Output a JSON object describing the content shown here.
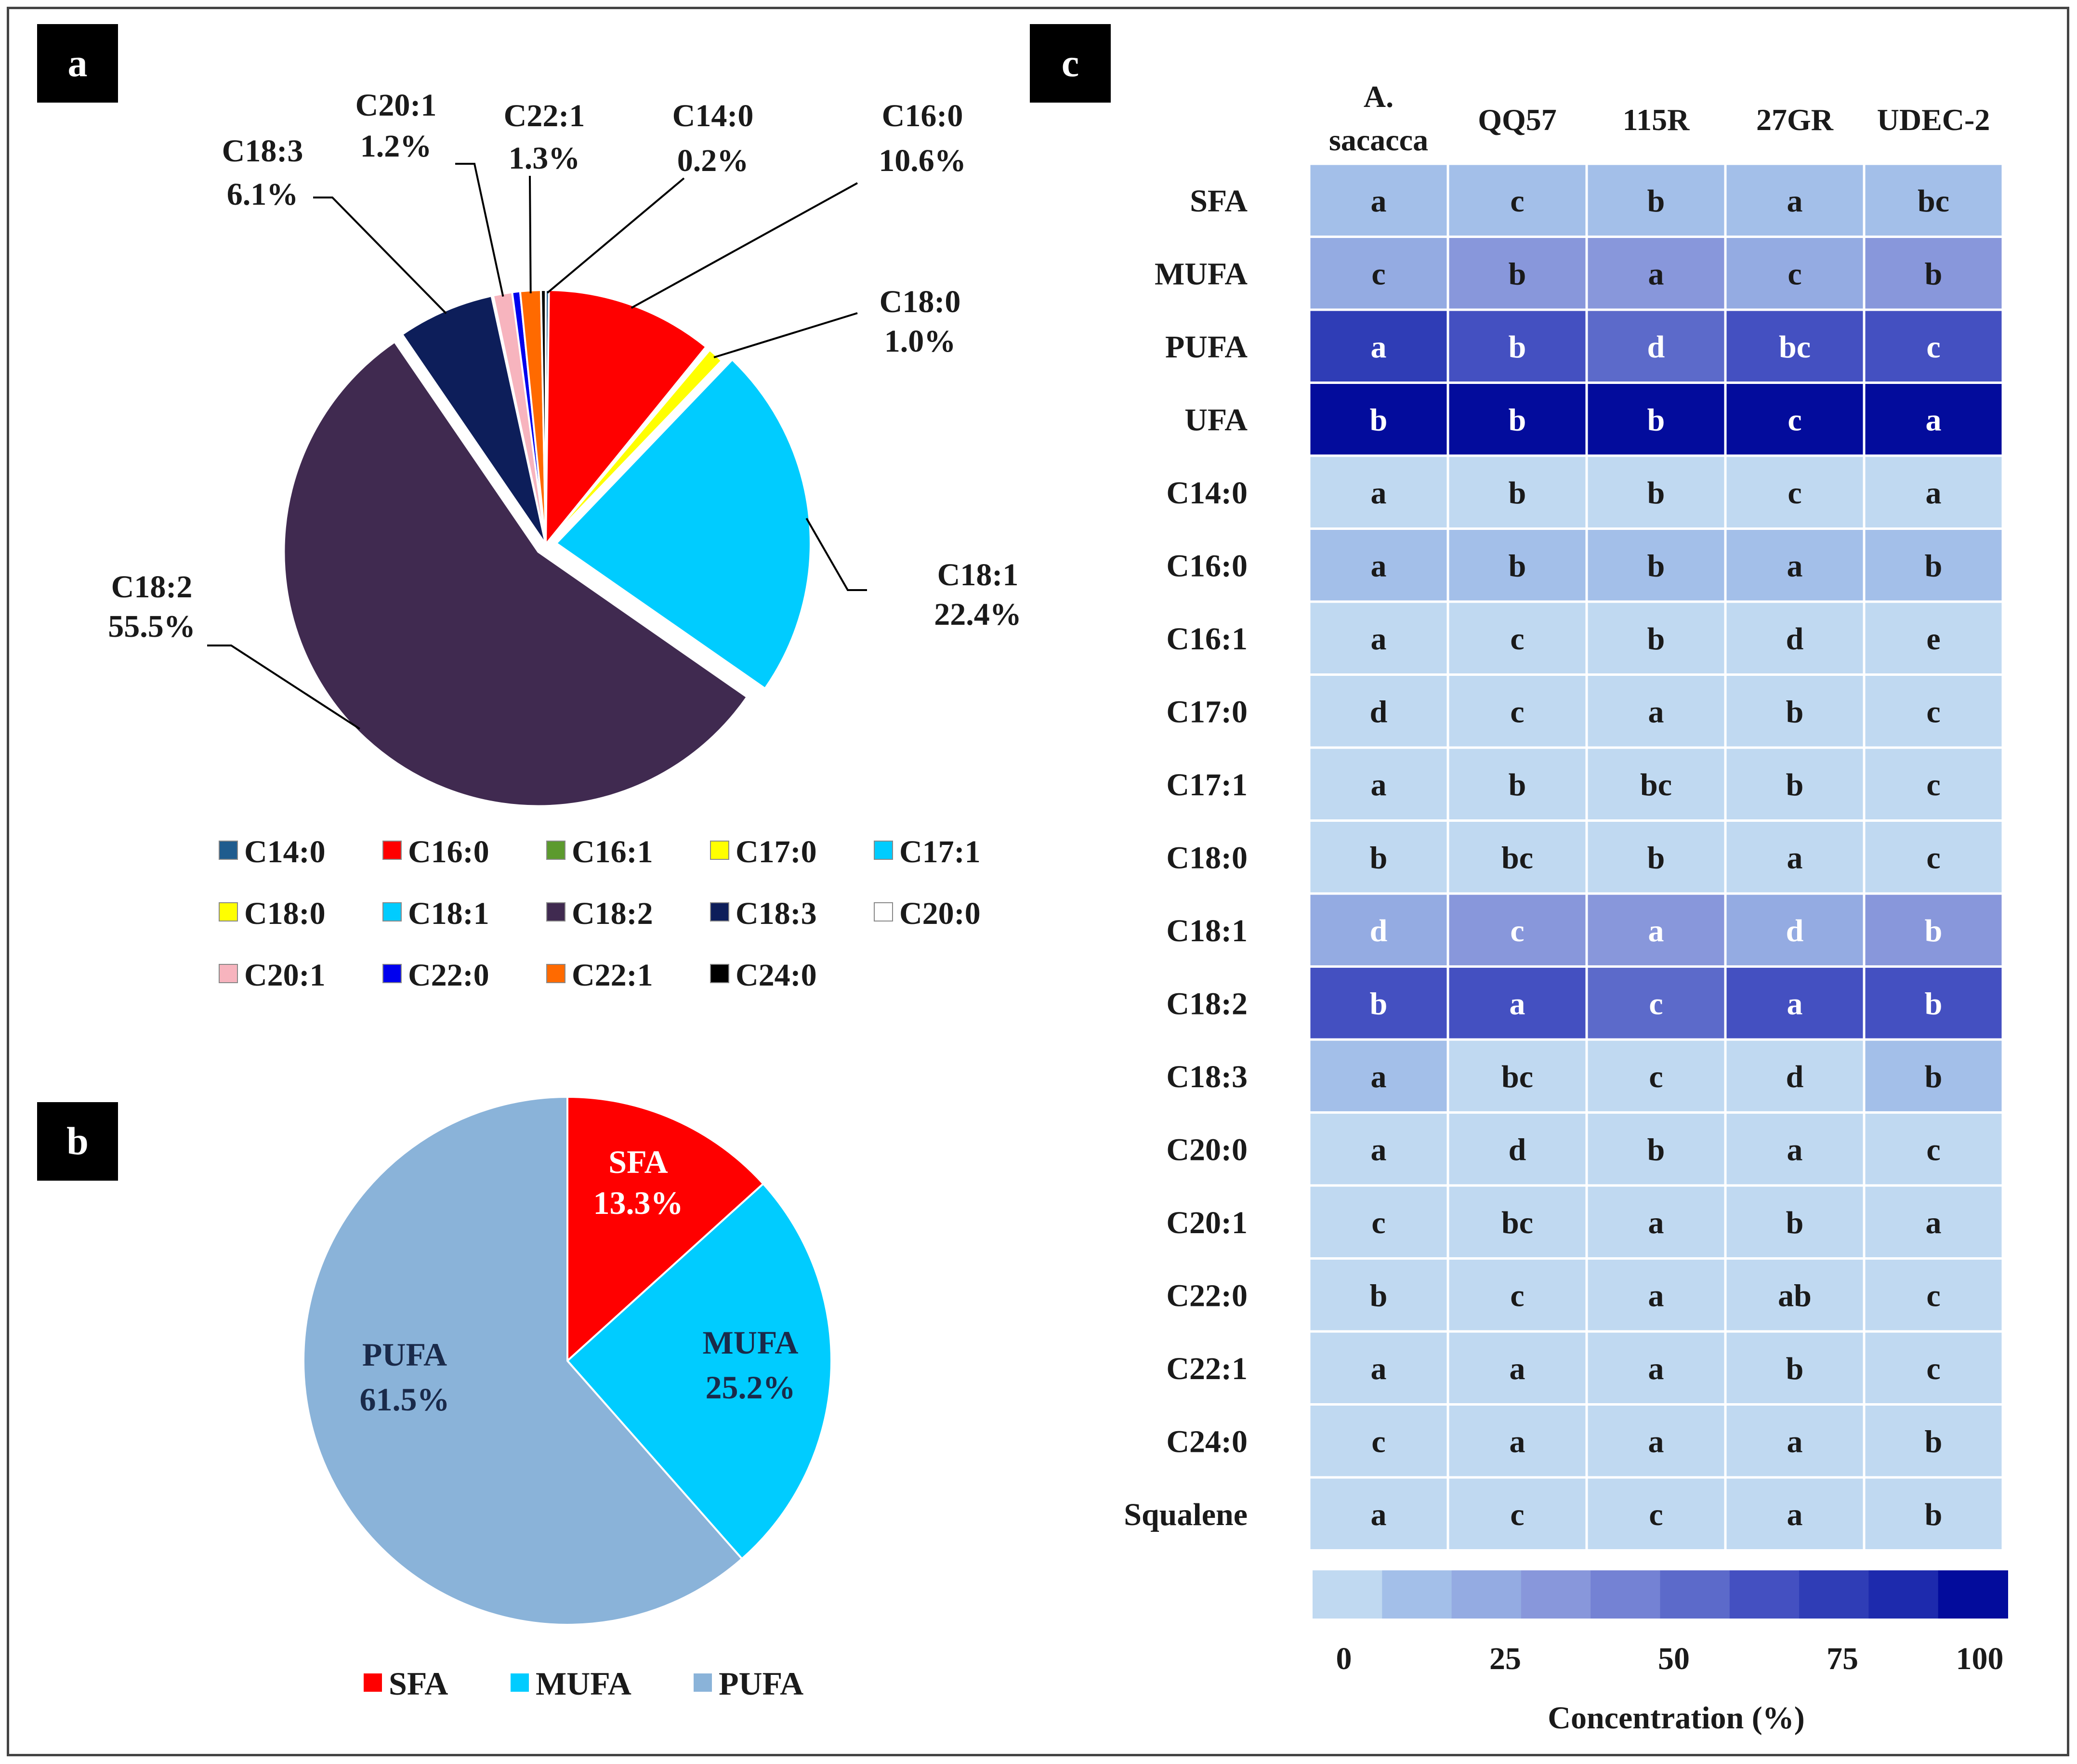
{
  "panels": {
    "a": {
      "letter": "a"
    },
    "b": {
      "letter": "b"
    },
    "c": {
      "letter": "c"
    }
  },
  "chart_data": [
    {
      "type": "pie",
      "panel": "a",
      "slices": [
        {
          "name": "C14:0",
          "value": 0.2,
          "label": "0.2%",
          "color": "#1F5C8E"
        },
        {
          "name": "C16:0",
          "value": 10.6,
          "label": "10.6%",
          "color": "#FF0000"
        },
        {
          "name": "C16:1",
          "value": 0.1,
          "label": "",
          "color": "#5C9A2E"
        },
        {
          "name": "C17:0",
          "value": 0.1,
          "label": "",
          "color": "#FFFF00"
        },
        {
          "name": "C17:1",
          "value": 0.1,
          "label": "",
          "color": "#00CCFF"
        },
        {
          "name": "C18:0",
          "value": 1.0,
          "label": "1.0%",
          "color": "#FFFF00"
        },
        {
          "name": "C18:1",
          "value": 22.4,
          "label": "22.4%",
          "color": "#00CCFF",
          "exploded": true
        },
        {
          "name": "C18:2",
          "value": 55.5,
          "label": "55.5%",
          "color": "#402A50",
          "exploded": true
        },
        {
          "name": "C18:3",
          "value": 6.1,
          "label": "6.1%",
          "color": "#0D1E5A"
        },
        {
          "name": "C20:0",
          "value": 0.1,
          "label": "",
          "color": "#FFFFFF"
        },
        {
          "name": "C20:1",
          "value": 1.2,
          "label": "1.2%",
          "color": "#F7B4BE"
        },
        {
          "name": "C22:0",
          "value": 0.5,
          "label": "",
          "color": "#0000EE"
        },
        {
          "name": "C22:1",
          "value": 1.3,
          "label": "1.3%",
          "color": "#FF6A00"
        },
        {
          "name": "C24:0",
          "value": 0.3,
          "label": "",
          "color": "#000000"
        }
      ],
      "callouts": [
        "C14:0",
        "C16:0",
        "C18:0",
        "C18:1",
        "C18:2",
        "C18:3",
        "C20:1",
        "C22:1"
      ],
      "legend": [
        "C14:0",
        "C16:0",
        "C16:1",
        "C17:0",
        "C17:1",
        "C18:0",
        "C18:1",
        "C18:2",
        "C18:3",
        "C20:0",
        "C20:1",
        "C22:0",
        "C22:1",
        "C24:0"
      ],
      "legend_position": "bottom"
    },
    {
      "type": "pie",
      "panel": "b",
      "slices": [
        {
          "name": "SFA",
          "value": 13.3,
          "label": "13.3%",
          "color": "#FF0000",
          "text_color": "#FFFFFF"
        },
        {
          "name": "MUFA",
          "value": 25.2,
          "label": "25.2%",
          "color": "#00CCFF",
          "text_color": "#1A2A4A"
        },
        {
          "name": "PUFA",
          "value": 61.5,
          "label": "61.5%",
          "color": "#8AB3D9",
          "text_color": "#1A2A4A"
        }
      ],
      "legend": [
        "SFA",
        "MUFA",
        "PUFA"
      ],
      "legend_position": "bottom"
    },
    {
      "type": "heatmap",
      "panel": "c",
      "columns": [
        "A. sacacca",
        "QQ57",
        "115R",
        "27GR",
        "UDEC-2"
      ],
      "rows": [
        "SFA",
        "MUFA",
        "PUFA",
        "UFA",
        "C14:0",
        "C16:0",
        "C16:1",
        "C17:0",
        "C17:1",
        "C18:0",
        "C18:1",
        "C18:2",
        "C18:3",
        "C20:0",
        "C20:1",
        "C22:0",
        "C22:1",
        "C24:0",
        "Squalene"
      ],
      "letters": [
        [
          "a",
          "c",
          "b",
          "a",
          "bc"
        ],
        [
          "c",
          "b",
          "a",
          "c",
          "b"
        ],
        [
          "a",
          "b",
          "d",
          "bc",
          "c"
        ],
        [
          "b",
          "b",
          "b",
          "c",
          "a"
        ],
        [
          "a",
          "b",
          "b",
          "c",
          "a"
        ],
        [
          "a",
          "b",
          "b",
          "a",
          "b"
        ],
        [
          "a",
          "c",
          "b",
          "d",
          "e"
        ],
        [
          "d",
          "c",
          "a",
          "b",
          "c"
        ],
        [
          "a",
          "b",
          "bc",
          "b",
          "c"
        ],
        [
          "b",
          "bc",
          "b",
          "a",
          "c"
        ],
        [
          "d",
          "c",
          "a",
          "d",
          "b"
        ],
        [
          "b",
          "a",
          "c",
          "a",
          "b"
        ],
        [
          "a",
          "bc",
          "c",
          "d",
          "b"
        ],
        [
          "a",
          "d",
          "b",
          "a",
          "c"
        ],
        [
          "c",
          "bc",
          "a",
          "b",
          "a"
        ],
        [
          "b",
          "c",
          "a",
          "ab",
          "c"
        ],
        [
          "a",
          "a",
          "a",
          "b",
          "c"
        ],
        [
          "c",
          "a",
          "a",
          "a",
          "b"
        ],
        [
          "a",
          "c",
          "c",
          "a",
          "b"
        ]
      ],
      "values": [
        [
          14,
          14,
          14,
          14,
          14
        ],
        [
          28,
          33,
          38,
          28,
          33
        ],
        [
          70,
          65,
          58,
          62,
          62
        ],
        [
          96,
          96,
          96,
          93,
          98
        ],
        [
          2,
          2,
          2,
          2,
          2
        ],
        [
          14,
          12,
          12,
          14,
          12
        ],
        [
          2,
          2,
          2,
          2,
          2
        ],
        [
          2,
          2,
          2,
          2,
          2
        ],
        [
          2,
          2,
          2,
          2,
          2
        ],
        [
          2,
          2,
          2,
          2,
          2
        ],
        [
          28,
          30,
          34,
          28,
          34
        ],
        [
          60,
          66,
          56,
          64,
          60
        ],
        [
          14,
          8,
          6,
          4,
          10
        ],
        [
          2,
          2,
          2,
          2,
          2
        ],
        [
          2,
          2,
          2,
          2,
          2
        ],
        [
          2,
          2,
          2,
          2,
          2
        ],
        [
          2,
          2,
          2,
          2,
          2
        ],
        [
          2,
          2,
          2,
          2,
          2
        ],
        [
          7,
          5,
          5,
          7,
          6
        ]
      ],
      "white_letters_row": "C18:1",
      "colorbar": {
        "range": [
          0,
          100
        ],
        "ticks": [
          "0",
          "25",
          "50",
          "75",
          "100"
        ],
        "label": "Concentration (%)",
        "colors": [
          "#C0D9F1",
          "#A3BFE9",
          "#94ABE2",
          "#8897DB",
          "#7482D4",
          "#5C6ACA",
          "#4450C1",
          "#2F3DB6",
          "#1D2AAD",
          "#030C9C"
        ]
      }
    }
  ]
}
